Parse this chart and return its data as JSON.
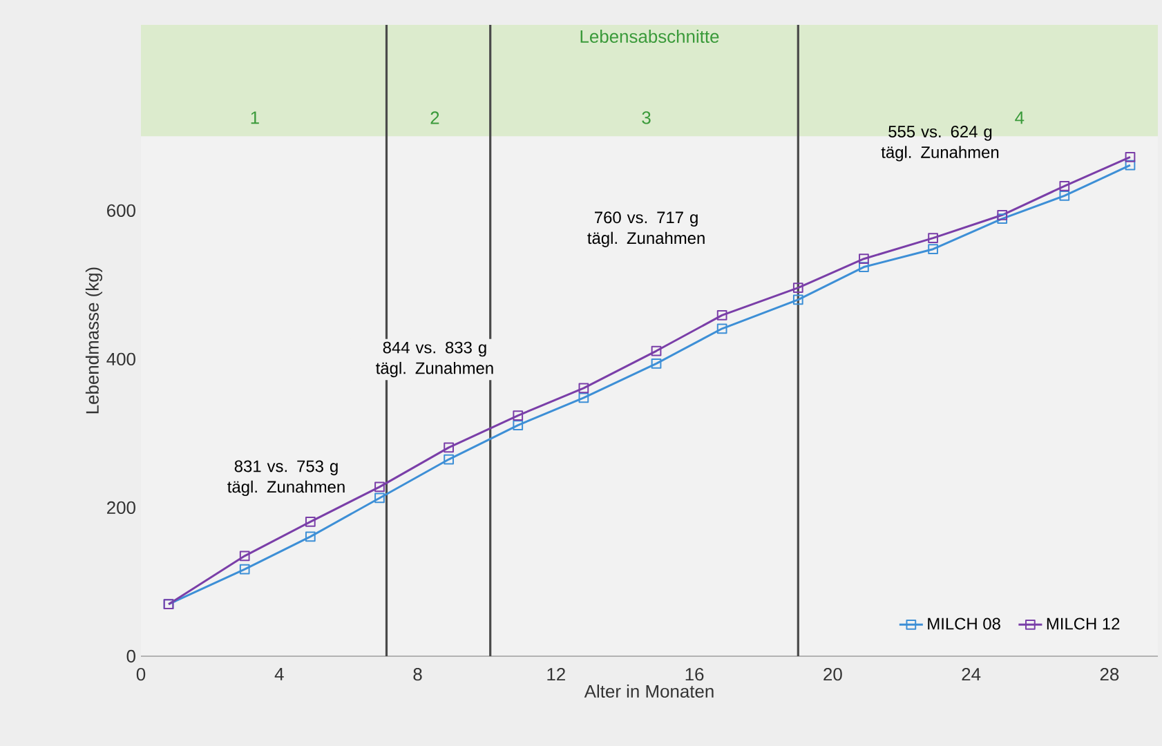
{
  "chart_data": {
    "type": "line",
    "xlabel": "Alter in Monaten",
    "ylabel": "Lebendmasse (kg)",
    "x": [
      0.8,
      3,
      4.9,
      6.9,
      8.9,
      10.9,
      12.8,
      14.9,
      16.8,
      19,
      20.9,
      22.9,
      24.9,
      26.7,
      28.6
    ],
    "series": [
      {
        "name": "MILCH 08",
        "color": "#3d8fd6",
        "values": [
          70,
          117,
          161,
          213,
          265,
          311,
          348,
          394,
          441,
          480,
          524,
          548,
          589,
          620,
          661
        ]
      },
      {
        "name": "MILCH 12",
        "color": "#7a3ea8",
        "values": [
          70,
          135,
          181,
          228,
          281,
          324,
          361,
          411,
          459,
          496,
          535,
          563,
          594,
          633,
          672
        ]
      }
    ],
    "xlim": [
      0,
      29.4
    ],
    "ylim": [
      0,
      850
    ],
    "xticks": [
      0,
      4,
      8,
      12,
      16,
      20,
      24,
      28
    ],
    "yticks": [
      0,
      200,
      400,
      600
    ],
    "marker": "square",
    "line_style": "solid",
    "legend": "bottom right",
    "grid": false,
    "bands": [
      {
        "axis": "y",
        "from": 700,
        "to": 850,
        "label": "Lebensabschnitte",
        "color": "#dcebcd"
      }
    ],
    "ref_lines": [
      {
        "axis": "x",
        "value": 7.1,
        "color": "#4a4a4a"
      },
      {
        "axis": "x",
        "value": 10.1,
        "color": "#4a4a4a"
      },
      {
        "axis": "x",
        "value": 19.0,
        "color": "#4a4a4a"
      }
    ],
    "annotations": [
      "1",
      "2",
      "3",
      "4",
      "831 vs. 753 g tägl. Zunahmen",
      "844 vs. 833 g tägl. Zunahmen",
      "760 vs. 717 g tägl. Zunahmen",
      "555 vs. 624 g tägl. Zunahmen"
    ]
  }
}
